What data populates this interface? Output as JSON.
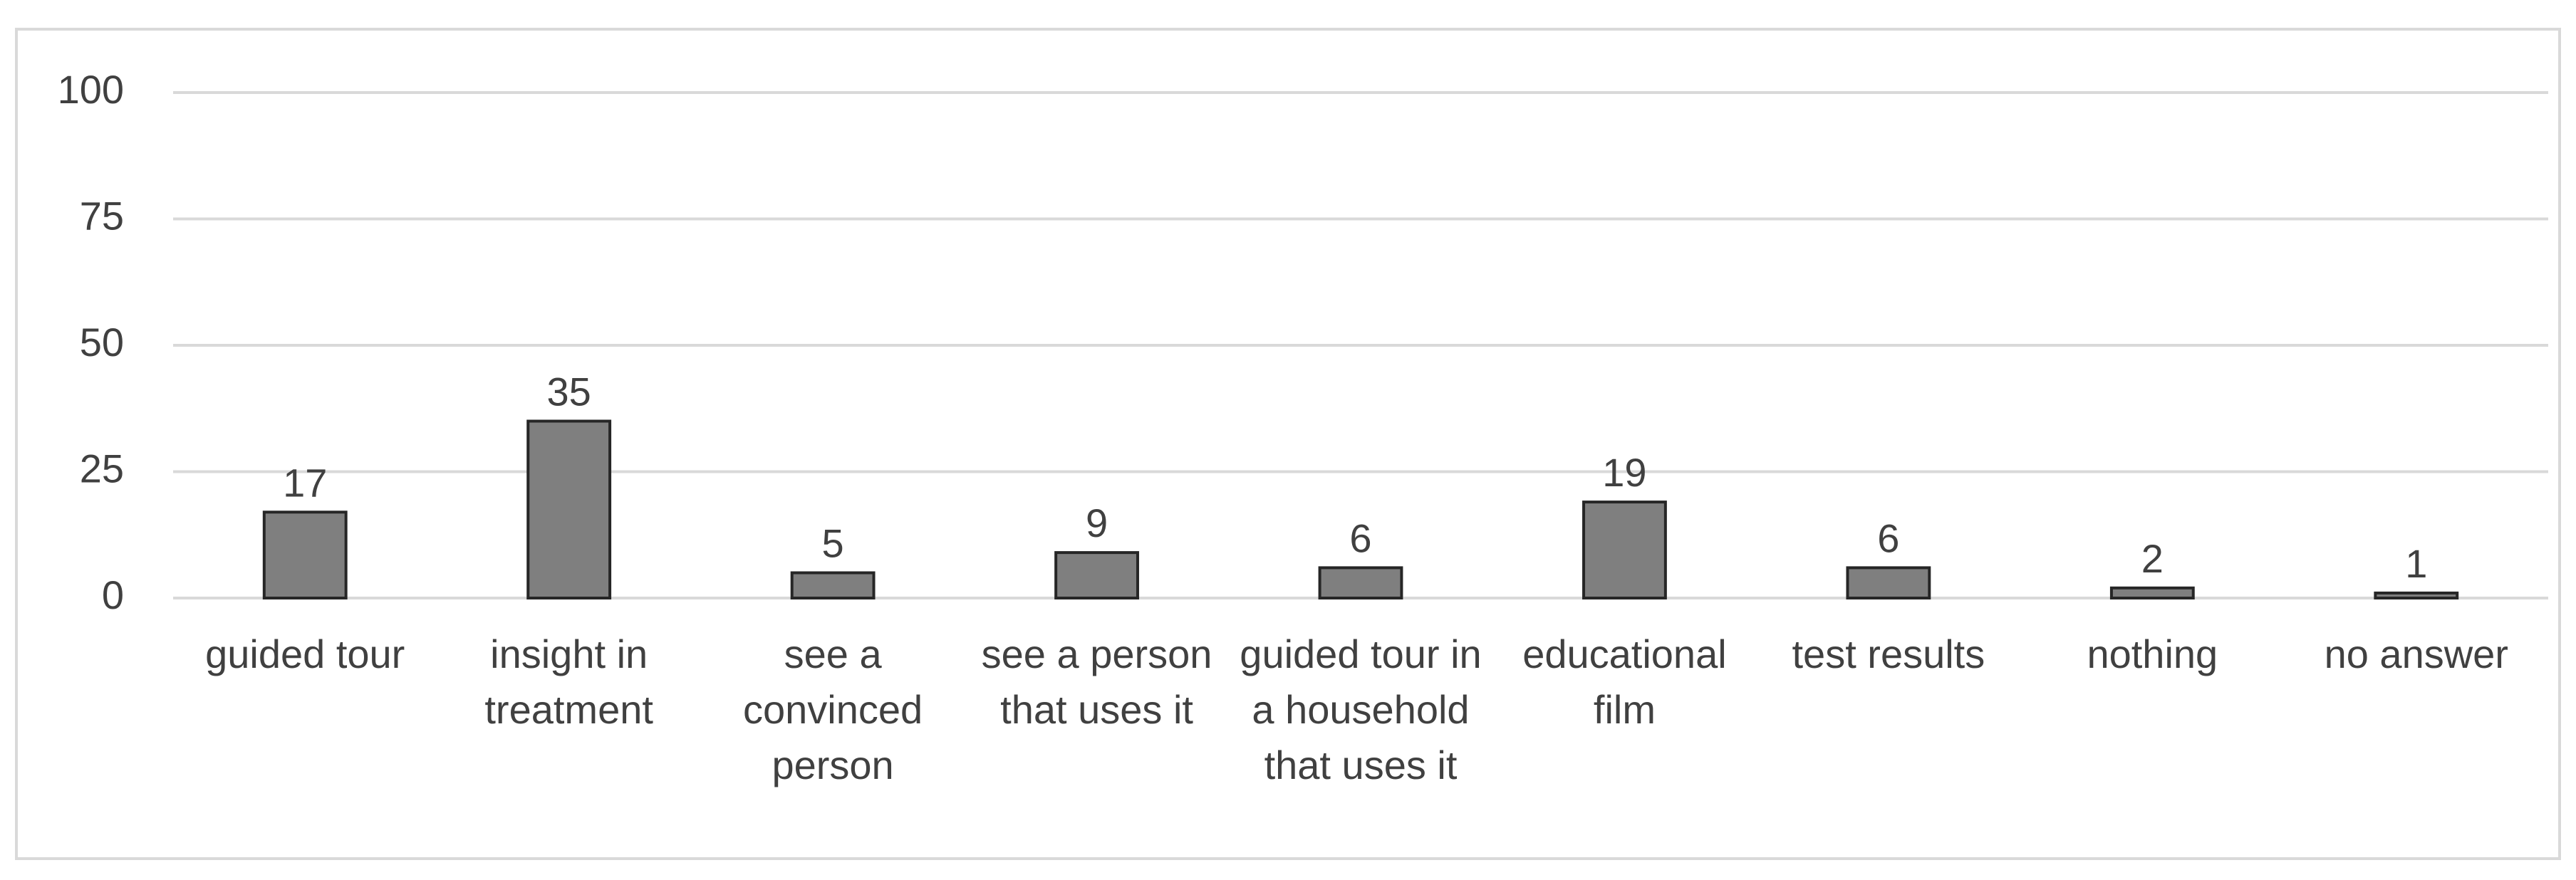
{
  "chart_data": {
    "type": "bar",
    "categories": [
      "guided tour",
      "insight in treatment",
      "see a convinced person",
      "see a person that uses it",
      "guided tour in a household that uses it",
      "educational film",
      "test results",
      "nothing",
      "no answer"
    ],
    "values": [
      17,
      35,
      5,
      9,
      6,
      19,
      6,
      2,
      1
    ],
    "color": "#7f7f7f",
    "ylim": [
      0,
      100
    ],
    "yticks": [
      0,
      25,
      50,
      75,
      100
    ],
    "grid": true
  }
}
